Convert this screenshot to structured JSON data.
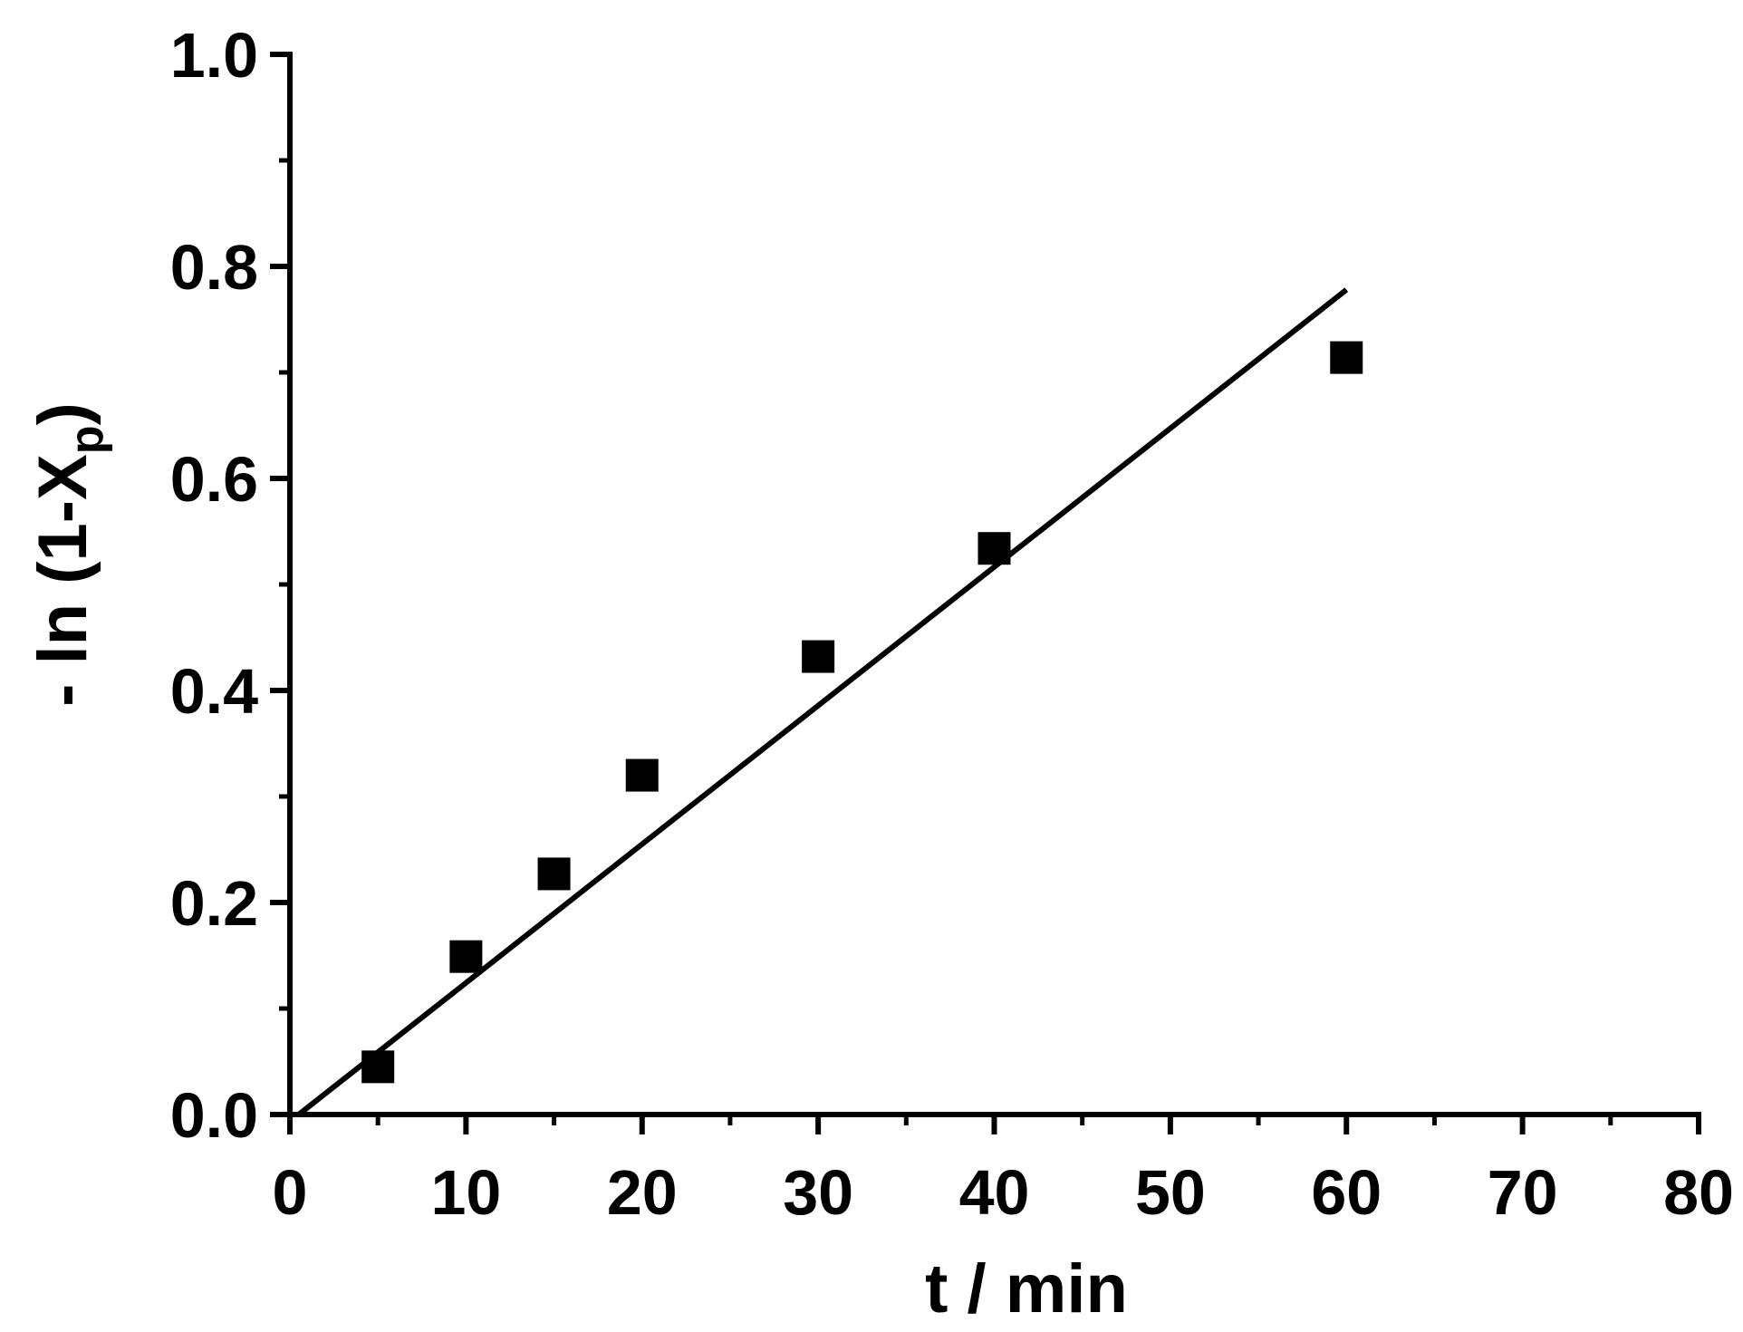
{
  "chart_data": {
    "type": "scatter",
    "title": "",
    "xlabel": "t / min",
    "ylabel": {
      "prefix": "- ln (1-X",
      "subscript": "p",
      "suffix": ")"
    },
    "xlim": [
      0,
      80
    ],
    "ylim": [
      0,
      1.0
    ],
    "x_ticks": [
      "0",
      "10",
      "20",
      "30",
      "40",
      "50",
      "60",
      "70",
      "80"
    ],
    "y_ticks": [
      "0.0",
      "0.2",
      "0.4",
      "0.6",
      "0.8",
      "1.0"
    ],
    "grid": false,
    "legend": "none",
    "series": [
      {
        "type": "scatter",
        "marker": "square",
        "color": "#000000",
        "x": [
          5,
          10,
          15,
          20,
          30,
          40,
          60
        ],
        "y": [
          0.045,
          0.149,
          0.227,
          0.32,
          0.432,
          0.534,
          0.714
        ]
      },
      {
        "type": "line",
        "color": "#000000",
        "x": [
          0.5,
          60
        ],
        "y": [
          0.0,
          0.778
        ]
      }
    ]
  }
}
